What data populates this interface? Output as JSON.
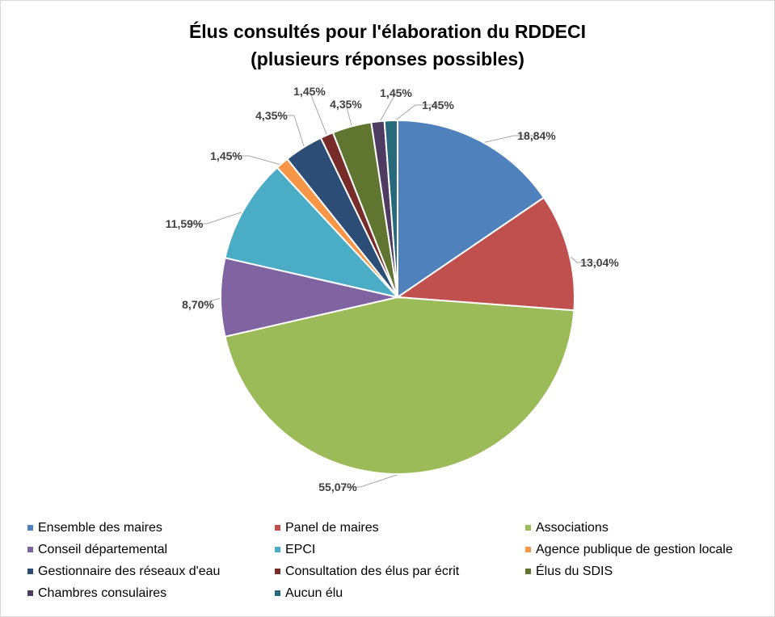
{
  "chart_data": {
    "type": "pie",
    "title_line1": "Élus consultés pour l'élaboration du RDDECI",
    "title_line2": "(plusieurs réponses possibles)",
    "legend_position": "bottom",
    "categories": [
      "Ensemble des maires",
      "Panel de maires",
      "Associations",
      "Conseil départemental",
      "EPCI",
      "Agence publique de gestion locale",
      "Gestionnaire des réseaux d'eau",
      "Consultation des élus par écrit",
      "Élus du SDIS",
      "Chambres consulaires",
      "Aucun élu"
    ],
    "values": [
      18.84,
      13.04,
      55.07,
      8.7,
      11.59,
      1.45,
      4.35,
      1.45,
      4.35,
      1.45,
      1.45
    ],
    "labels": [
      "18,84%",
      "13,04%",
      "55,07%",
      "8,70%",
      "11,59%",
      "1,45%",
      "4,35%",
      "1,45%",
      "4,35%",
      "1,45%",
      "1,45%"
    ],
    "colors": [
      "#4F81BD",
      "#C0504D",
      "#9BBB59",
      "#8064A2",
      "#4BACC6",
      "#F79646",
      "#2C4D75",
      "#772C2A",
      "#5F7530",
      "#4D3B62",
      "#276A7C"
    ]
  }
}
